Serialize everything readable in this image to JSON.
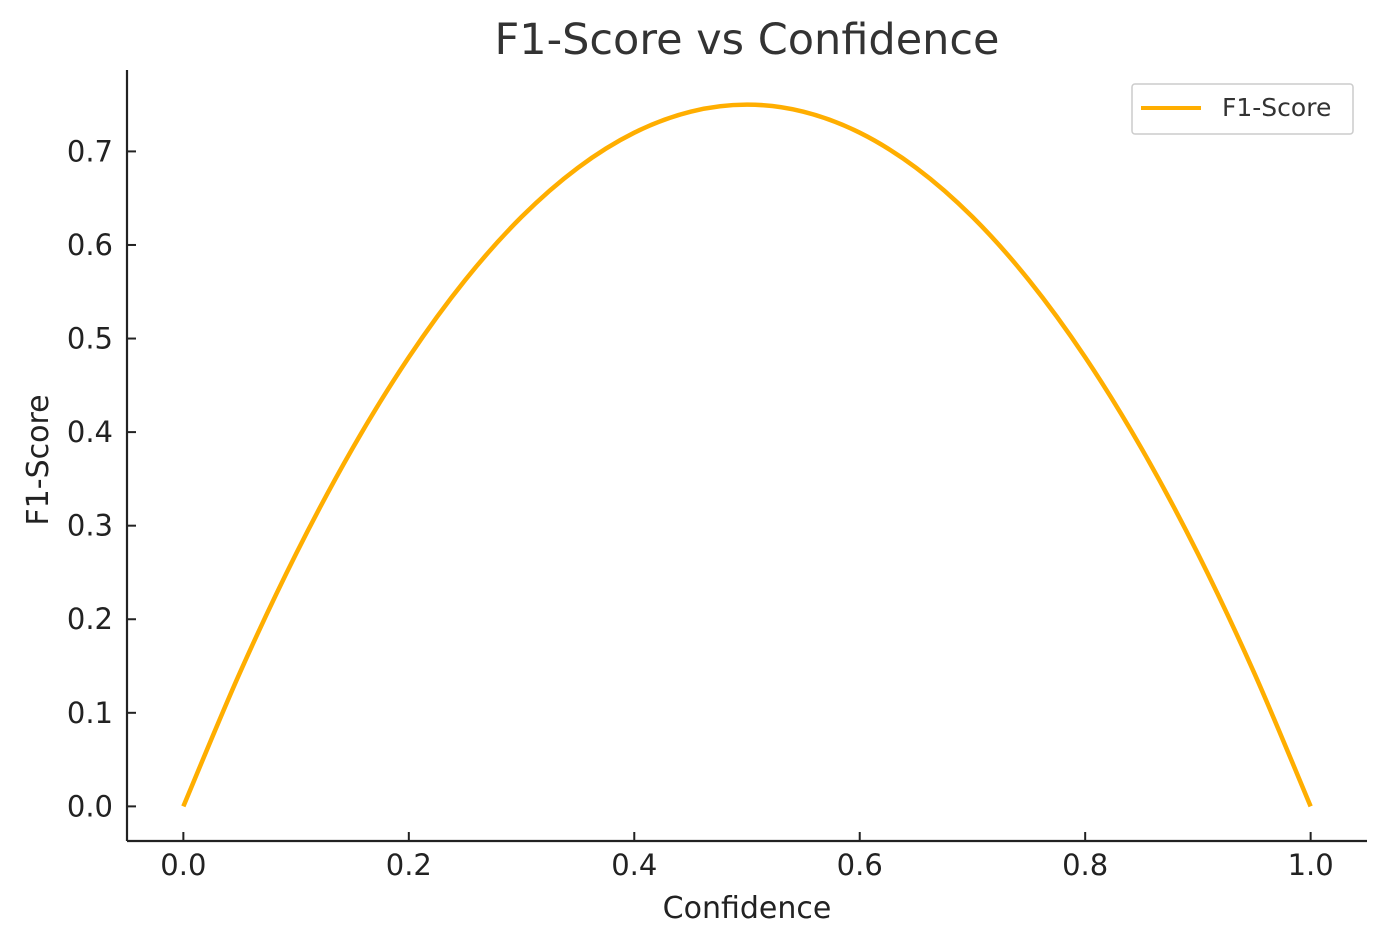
{
  "chart_data": {
    "type": "line",
    "title": "F1-Score vs Confidence",
    "xlabel": "Confidence",
    "ylabel": "F1-Score",
    "xlim": [
      -0.05,
      1.05
    ],
    "ylim": [
      -0.037,
      0.787
    ],
    "x_ticks": [
      0.0,
      0.2,
      0.4,
      0.6,
      0.8,
      1.0
    ],
    "x_tick_labels": [
      "0.0",
      "0.2",
      "0.4",
      "0.6",
      "0.8",
      "1.0"
    ],
    "y_ticks": [
      0.0,
      0.1,
      0.2,
      0.3,
      0.4,
      0.5,
      0.6,
      0.7
    ],
    "y_tick_labels": [
      "0.0",
      "0.1",
      "0.2",
      "0.3",
      "0.4",
      "0.5",
      "0.6",
      "0.7"
    ],
    "grid": false,
    "legend_position": "top-right",
    "x": [
      0.0,
      0.05,
      0.1,
      0.15,
      0.2,
      0.25,
      0.3,
      0.35,
      0.4,
      0.45,
      0.5,
      0.55,
      0.6,
      0.65,
      0.7,
      0.75,
      0.8,
      0.85,
      0.9,
      0.95,
      1.0
    ],
    "series": [
      {
        "name": "F1-Score",
        "color": "#FFAE00",
        "values": [
          0.0,
          0.1425,
          0.27,
          0.3825,
          0.48,
          0.5625,
          0.63,
          0.6825,
          0.72,
          0.7425,
          0.75,
          0.7425,
          0.72,
          0.6825,
          0.63,
          0.5625,
          0.48,
          0.3825,
          0.27,
          0.1425,
          0.0
        ]
      }
    ]
  }
}
